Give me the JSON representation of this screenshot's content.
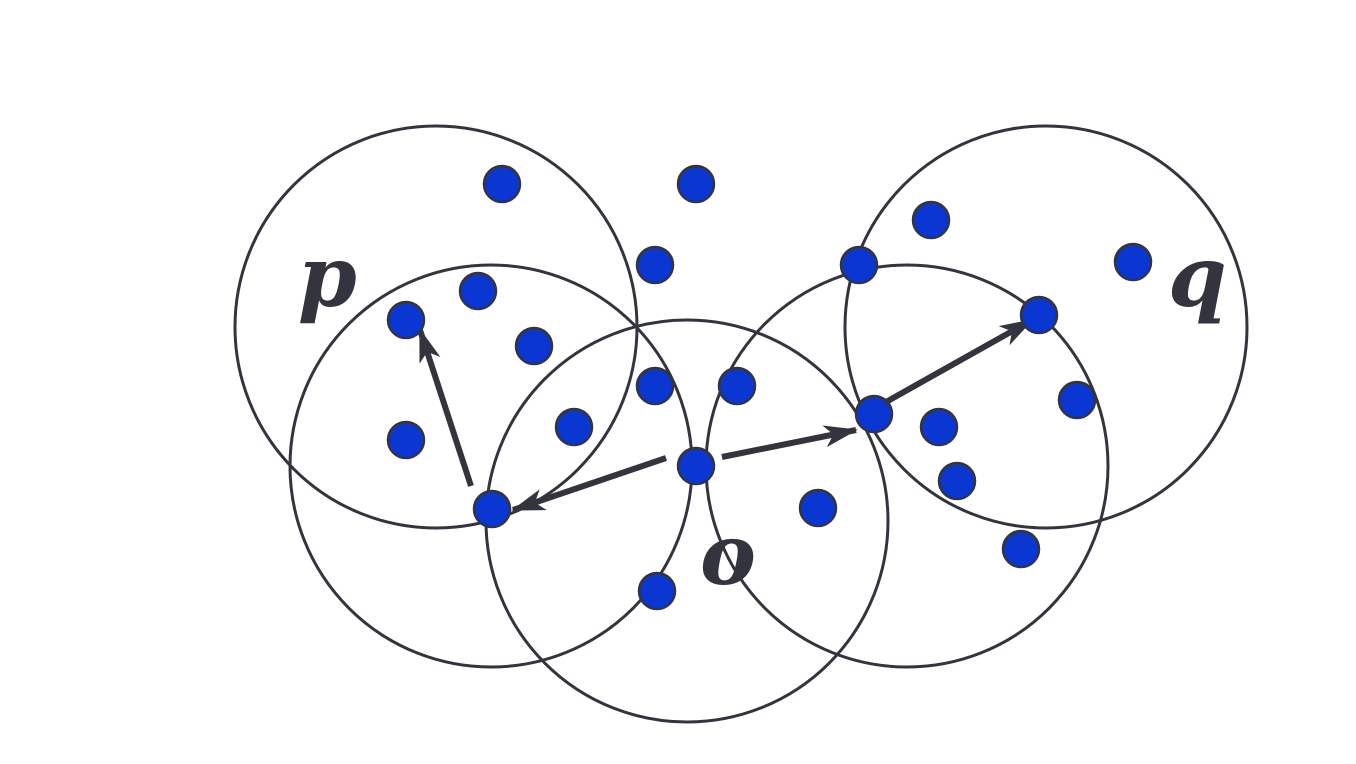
{
  "colors": {
    "stroke": "#34343f",
    "point_fill": "#0a37d2",
    "background": "#ffffff"
  },
  "labels": {
    "p": "p",
    "q": "q",
    "o": "o"
  }
}
